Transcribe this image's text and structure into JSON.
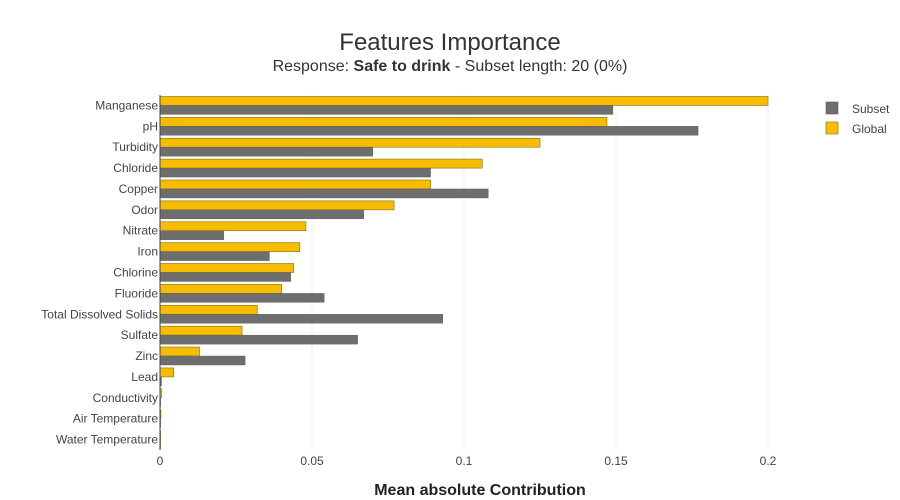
{
  "chart_data": {
    "type": "bar",
    "orientation": "horizontal",
    "title": "Features Importance",
    "subtitle": {
      "prefix": "Response: ",
      "bold": "Safe to drink",
      "suffix": " - Subset length: 20 (0%)"
    },
    "xlabel": "Mean absolute Contribution",
    "ylabel": "",
    "xlim": [
      0,
      0.21
    ],
    "xticks": [
      0,
      0.05,
      0.1,
      0.15,
      0.2
    ],
    "xtick_labels": [
      "0",
      "0.05",
      "0.1",
      "0.15",
      "0.2"
    ],
    "grid": true,
    "legend_position": "top-right",
    "categories": [
      "Manganese",
      "pH",
      "Turbidity",
      "Chloride",
      "Copper",
      "Odor",
      "Nitrate",
      "Iron",
      "Chlorine",
      "Fluoride",
      "Total Dissolved Solids",
      "Sulfate",
      "Zinc",
      "Lead",
      "Conductivity",
      "Air Temperature",
      "Water Temperature"
    ],
    "series": [
      {
        "name": "Subset",
        "color": "#6e6e6e",
        "values": [
          0.149,
          0.177,
          0.07,
          0.089,
          0.108,
          0.067,
          0.021,
          0.036,
          0.043,
          0.054,
          0.093,
          0.065,
          0.028,
          0.0005,
          0.0002,
          0.0001,
          0.0001
        ]
      },
      {
        "name": "Global",
        "color": "#f5bc00",
        "values": [
          0.2,
          0.147,
          0.125,
          0.106,
          0.089,
          0.077,
          0.048,
          0.046,
          0.044,
          0.04,
          0.032,
          0.027,
          0.013,
          0.0045,
          0.0005,
          0.0003,
          0.0001
        ]
      }
    ]
  }
}
